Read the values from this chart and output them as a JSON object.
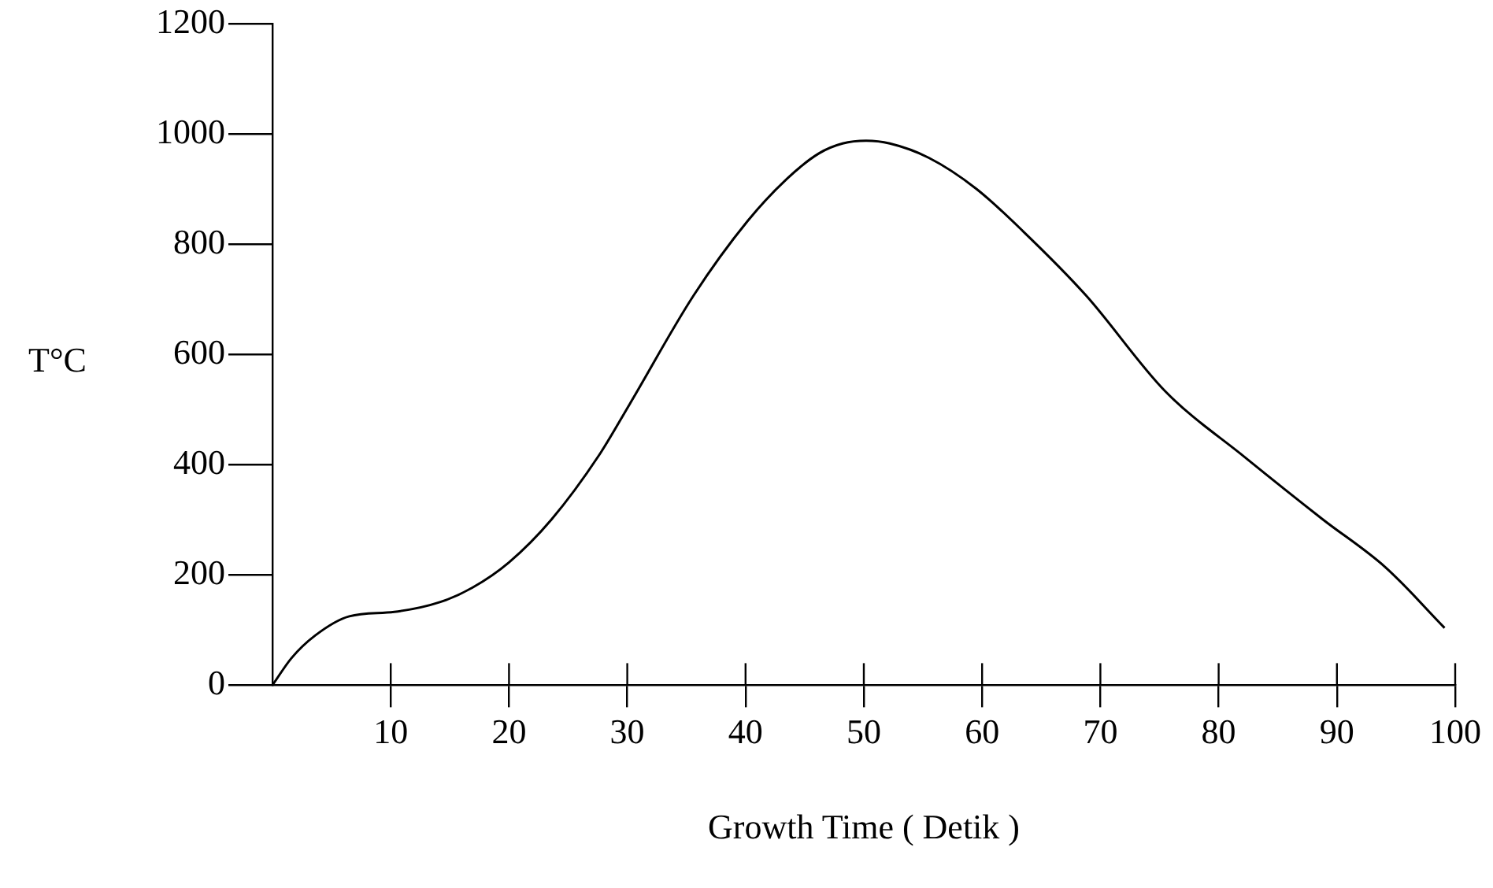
{
  "chart_data": {
    "type": "line",
    "xlabel": "Growth Time ( Detik )",
    "ylabel": "T°C",
    "x": [
      0,
      1.6,
      3.6,
      6.5,
      10.3,
      14.2,
      16.9,
      20,
      23.6,
      27.6,
      30.2,
      35.6,
      40.2,
      43.5,
      46.2,
      48.2,
      50.2,
      52.2,
      55.5,
      59.5,
      63.5,
      68.8,
      75.5,
      82.2,
      88.8,
      94.1,
      99.1
    ],
    "values": [
      0,
      49,
      90,
      125,
      133,
      151,
      177,
      223,
      301,
      417,
      510,
      707,
      843,
      919,
      965,
      983,
      988,
      983,
      957,
      901,
      823,
      707,
      533,
      414,
      301,
      214,
      104
    ],
    "color": "#000000",
    "marker": "none",
    "line_style": "solid",
    "grid": false,
    "legend": false,
    "xlim": [
      0,
      100
    ],
    "xticks": [
      10,
      20,
      30,
      40,
      50,
      60,
      70,
      80,
      90,
      100
    ],
    "ylim": [
      0,
      1200
    ],
    "yticks": [
      0,
      200,
      400,
      600,
      800,
      1000,
      1200
    ]
  }
}
